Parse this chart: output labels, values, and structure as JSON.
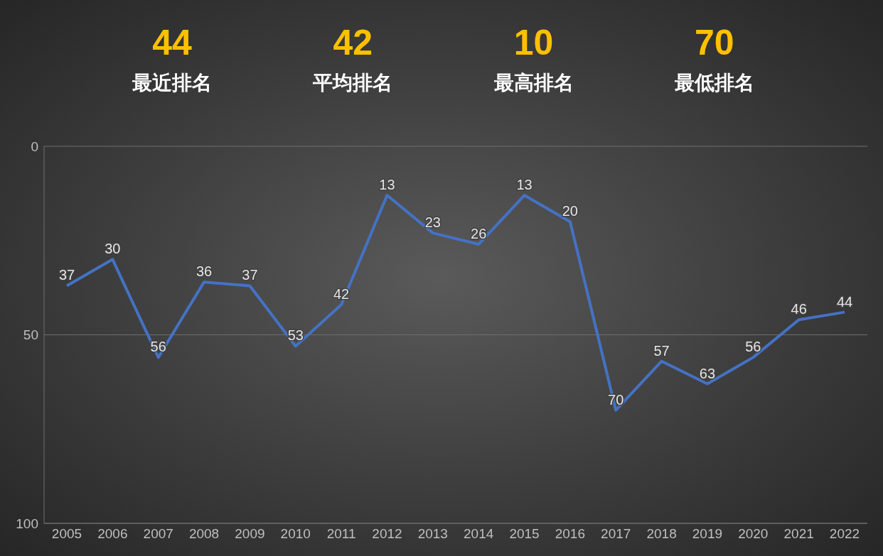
{
  "chart_data": {
    "type": "line",
    "annotations": [
      "44",
      "最近排名",
      "42",
      "平均排名",
      "10",
      "最高排名",
      "70",
      "最低排名"
    ],
    "categories": [
      "2005",
      "2006",
      "2007",
      "2008",
      "2009",
      "2010",
      "2011",
      "2012",
      "2013",
      "2014",
      "2015",
      "2016",
      "2017",
      "2018",
      "2019",
      "2020",
      "2021",
      "2022"
    ],
    "series": [
      {
        "color": "#4472c4",
        "values": [
          37,
          30,
          56,
          36,
          37,
          53,
          42,
          13,
          23,
          26,
          13,
          20,
          70,
          57,
          63,
          56,
          46,
          44
        ]
      }
    ],
    "ylim": [
      100,
      0
    ],
    "yticks": [
      0,
      50,
      100
    ],
    "grid": "y",
    "data_labels": true,
    "marker": "none",
    "line_style": "solid"
  }
}
